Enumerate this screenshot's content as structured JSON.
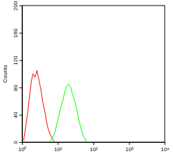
{
  "chart_data": {
    "type": "line",
    "y_label": "Counts",
    "log": "x",
    "x": [
      1.1,
      1.2,
      1.4,
      1.6,
      1.8,
      2.0,
      2.3,
      2.6,
      3.0,
      3.4,
      3.9,
      4.5,
      5.2,
      6,
      7,
      8,
      9,
      10,
      12,
      14,
      16,
      18,
      20,
      23,
      26,
      30,
      35,
      40,
      46,
      53,
      60,
      66
    ],
    "series": [
      {
        "color": "#ff0000",
        "values": [
          2,
          15,
          40,
          65,
          88,
          100,
          95,
          105,
          90,
          75,
          55,
          40,
          22,
          12,
          5,
          1,
          null,
          null,
          null,
          null,
          null,
          null,
          null,
          null,
          null,
          null,
          null,
          null,
          null,
          null,
          null,
          null
        ]
      },
      {
        "color": "#00ff00",
        "values": [
          null,
          null,
          null,
          null,
          null,
          null,
          null,
          null,
          null,
          null,
          null,
          null,
          null,
          1,
          5,
          12,
          22,
          32,
          50,
          62,
          75,
          82,
          85,
          80,
          70,
          60,
          45,
          30,
          18,
          8,
          3,
          0
        ]
      }
    ],
    "xlim": [
      1,
      10000
    ],
    "xticks": [
      {
        "value": 1,
        "label": "10⁰"
      },
      {
        "value": 10,
        "label": "10¹"
      },
      {
        "value": 100,
        "label": "10²"
      },
      {
        "value": 1000,
        "label": "10³"
      },
      {
        "value": 10000,
        "label": "10⁴"
      }
    ],
    "ylim": [
      0,
      200
    ],
    "yticks": [
      0,
      40,
      80,
      120,
      160,
      200
    ]
  }
}
